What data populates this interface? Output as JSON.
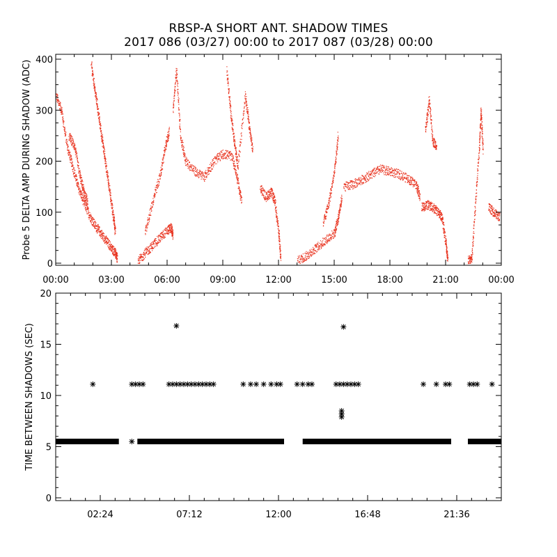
{
  "title_line1": "RBSP-A SHORT ANT. SHADOW TIMES",
  "title_line2": "2017 086 (03/27) 00:00 to 2017 087 (03/28) 00:00",
  "chart_data": [
    {
      "type": "scatter",
      "ylabel": "Probe 5 DELTA AMP DURING SHADOW (ADC)",
      "xlabel": "",
      "xlim_hours": [
        0,
        24
      ],
      "ylim": [
        0,
        400
      ],
      "x_tick_labels": [
        "00:00",
        "03:00",
        "06:00",
        "09:00",
        "12:00",
        "15:00",
        "18:00",
        "21:00",
        "00:00"
      ],
      "y_tick_labels": [
        "0",
        "100",
        "200",
        "300",
        "400"
      ],
      "color": "#e8321e",
      "series": [
        {
          "points": [
            [
              0.0,
              330
            ],
            [
              0.3,
              300
            ],
            [
              0.6,
              230
            ],
            [
              0.9,
              190
            ],
            [
              1.2,
              150
            ],
            [
              1.5,
              120
            ],
            [
              1.8,
              95
            ],
            [
              2.1,
              75
            ],
            [
              2.4,
              60
            ],
            [
              2.7,
              45
            ],
            [
              3.0,
              30
            ],
            [
              3.2,
              20
            ],
            [
              3.3,
              10
            ]
          ]
        },
        {
          "points": [
            [
              1.9,
              390
            ],
            [
              2.1,
              340
            ],
            [
              2.3,
              290
            ],
            [
              2.5,
              240
            ],
            [
              2.7,
              190
            ],
            [
              2.9,
              140
            ],
            [
              3.1,
              90
            ],
            [
              3.2,
              60
            ]
          ]
        },
        {
          "points": [
            [
              0.7,
              250
            ],
            [
              1.0,
              230
            ],
            [
              1.3,
              170
            ],
            [
              1.5,
              140
            ],
            [
              1.7,
              120
            ]
          ]
        },
        {
          "points": [
            [
              4.4,
              5
            ],
            [
              4.8,
              20
            ],
            [
              5.2,
              35
            ],
            [
              5.6,
              50
            ],
            [
              6.0,
              65
            ],
            [
              6.2,
              70
            ],
            [
              6.3,
              55
            ]
          ]
        },
        {
          "points": [
            [
              4.8,
              60
            ],
            [
              5.2,
              120
            ],
            [
              5.6,
              170
            ],
            [
              5.9,
              230
            ],
            [
              6.1,
              260
            ]
          ]
        },
        {
          "points": [
            [
              6.3,
              300
            ],
            [
              6.5,
              380
            ],
            [
              6.7,
              250
            ],
            [
              7.0,
              200
            ],
            [
              7.5,
              180
            ],
            [
              8.0,
              170
            ],
            [
              8.5,
              200
            ],
            [
              9.0,
              215
            ],
            [
              9.5,
              210
            ],
            [
              9.8,
              160
            ],
            [
              10.0,
              120
            ]
          ]
        },
        {
          "points": [
            [
              9.2,
              380
            ],
            [
              9.4,
              300
            ],
            [
              9.6,
              240
            ],
            [
              9.8,
              190
            ],
            [
              10.2,
              330
            ],
            [
              10.4,
              270
            ],
            [
              10.6,
              220
            ]
          ]
        },
        {
          "points": [
            [
              11.0,
              150
            ],
            [
              11.3,
              130
            ],
            [
              11.6,
              140
            ],
            [
              11.8,
              120
            ],
            [
              12.0,
              60
            ],
            [
              12.1,
              10
            ]
          ]
        },
        {
          "points": [
            [
              13.0,
              5
            ],
            [
              13.5,
              15
            ],
            [
              14.0,
              30
            ],
            [
              14.5,
              45
            ],
            [
              15.0,
              60
            ],
            [
              15.2,
              90
            ],
            [
              15.4,
              130
            ]
          ]
        },
        {
          "points": [
            [
              14.4,
              80
            ],
            [
              14.7,
              120
            ],
            [
              15.0,
              180
            ],
            [
              15.2,
              250
            ]
          ]
        },
        {
          "points": [
            [
              15.5,
              150
            ],
            [
              16.0,
              155
            ],
            [
              16.5,
              165
            ],
            [
              17.0,
              175
            ],
            [
              17.5,
              185
            ],
            [
              18.0,
              180
            ],
            [
              18.5,
              175
            ],
            [
              19.0,
              165
            ],
            [
              19.4,
              155
            ],
            [
              19.6,
              130
            ]
          ]
        },
        {
          "points": [
            [
              19.7,
              110
            ],
            [
              20.0,
              115
            ],
            [
              20.3,
              110
            ],
            [
              20.6,
              100
            ],
            [
              20.8,
              90
            ],
            [
              21.0,
              40
            ],
            [
              21.1,
              5
            ]
          ]
        },
        {
          "points": [
            [
              19.9,
              260
            ],
            [
              20.1,
              320
            ],
            [
              20.3,
              240
            ],
            [
              20.5,
              230
            ]
          ]
        },
        {
          "points": [
            [
              22.2,
              5
            ],
            [
              22.4,
              10
            ],
            [
              22.6,
              120
            ],
            [
              22.8,
              230
            ],
            [
              22.9,
              300
            ],
            [
              23.0,
              220
            ]
          ]
        },
        {
          "points": [
            [
              23.3,
              110
            ],
            [
              23.6,
              100
            ],
            [
              23.9,
              90
            ]
          ]
        }
      ]
    },
    {
      "type": "scatter",
      "ylabel": "TIME BETWEEN SHADOWS (SEC)",
      "xlabel": "",
      "xlim_hours": [
        0,
        24
      ],
      "ylim": [
        0,
        20
      ],
      "x_tick_labels": [
        "02:24",
        "07:12",
        "12:00",
        "16:48",
        "21:36"
      ],
      "y_tick_labels": [
        "0",
        "5",
        "10",
        "15",
        "20"
      ],
      "color": "#000000",
      "baseline_value": 5.5,
      "baseline_ranges_hours": [
        [
          0.0,
          3.4
        ],
        [
          4.4,
          12.3
        ],
        [
          13.3,
          21.3
        ],
        [
          22.2,
          24.0
        ]
      ],
      "scatter_points": [
        [
          2.0,
          11.1
        ],
        [
          4.1,
          11.1
        ],
        [
          4.3,
          11.1
        ],
        [
          4.5,
          11.1
        ],
        [
          4.7,
          11.1
        ],
        [
          4.1,
          5.5
        ],
        [
          6.1,
          11.1
        ],
        [
          6.3,
          11.1
        ],
        [
          6.5,
          11.1
        ],
        [
          6.7,
          11.1
        ],
        [
          6.9,
          11.1
        ],
        [
          7.1,
          11.1
        ],
        [
          7.3,
          11.1
        ],
        [
          7.5,
          11.1
        ],
        [
          7.7,
          11.1
        ],
        [
          7.9,
          11.1
        ],
        [
          8.1,
          11.1
        ],
        [
          8.3,
          11.1
        ],
        [
          8.5,
          11.1
        ],
        [
          6.5,
          16.8
        ],
        [
          10.1,
          11.1
        ],
        [
          10.5,
          11.1
        ],
        [
          10.8,
          11.1
        ],
        [
          11.2,
          11.1
        ],
        [
          11.6,
          11.1
        ],
        [
          11.9,
          11.1
        ],
        [
          12.1,
          11.1
        ],
        [
          13.0,
          11.1
        ],
        [
          13.3,
          11.1
        ],
        [
          13.6,
          11.1
        ],
        [
          13.8,
          11.1
        ],
        [
          15.1,
          11.1
        ],
        [
          15.3,
          11.1
        ],
        [
          15.5,
          11.1
        ],
        [
          15.7,
          11.1
        ],
        [
          15.9,
          11.1
        ],
        [
          16.1,
          11.1
        ],
        [
          16.3,
          11.1
        ],
        [
          15.5,
          16.7
        ],
        [
          15.4,
          8.5
        ],
        [
          15.4,
          8.2
        ],
        [
          15.4,
          7.9
        ],
        [
          19.8,
          11.1
        ],
        [
          20.5,
          11.1
        ],
        [
          21.0,
          11.1
        ],
        [
          21.2,
          11.1
        ],
        [
          22.3,
          11.1
        ],
        [
          22.5,
          11.1
        ],
        [
          22.7,
          11.1
        ],
        [
          23.5,
          11.1
        ]
      ]
    }
  ]
}
